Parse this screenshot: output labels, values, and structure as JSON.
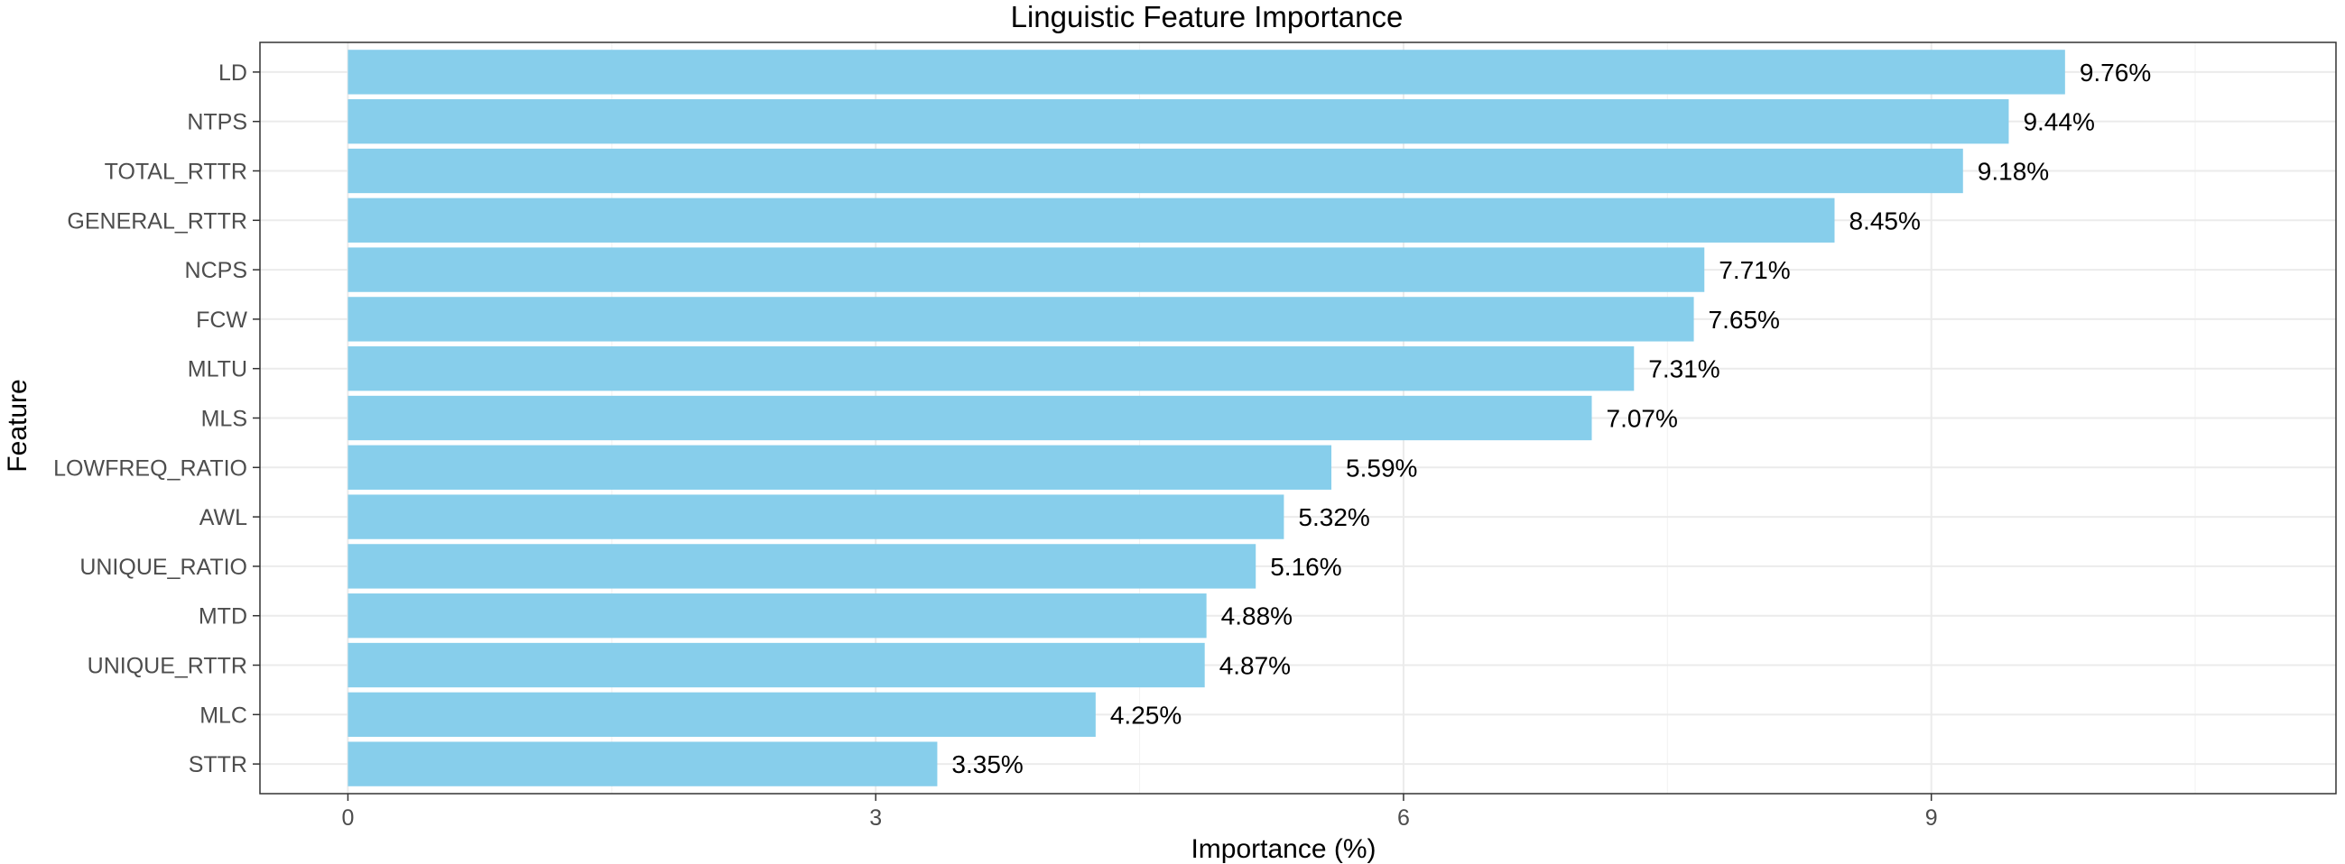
{
  "chart_data": {
    "type": "bar",
    "orientation": "horizontal",
    "title": "Linguistic Feature Importance",
    "xlabel": "Importance (%)",
    "ylabel": "Feature",
    "xlim": [
      -0.5,
      11.3
    ],
    "xticks": [
      0,
      3,
      6,
      9
    ],
    "grid": true,
    "bar_color": "#87CEEB",
    "categories": [
      "LD",
      "NTPS",
      "TOTAL_RTTR",
      "GENERAL_RTTR",
      "NCPS",
      "FCW",
      "MLTU",
      "MLS",
      "LOWFREQ_RATIO",
      "AWL",
      "UNIQUE_RATIO",
      "MTD",
      "UNIQUE_RTTR",
      "MLC",
      "STTR"
    ],
    "values": [
      9.76,
      9.44,
      9.18,
      8.45,
      7.71,
      7.65,
      7.31,
      7.07,
      5.59,
      5.32,
      5.16,
      4.88,
      4.87,
      4.25,
      3.35
    ],
    "value_labels": [
      "9.76%",
      "9.44%",
      "9.18%",
      "8.45%",
      "7.71%",
      "7.65%",
      "7.31%",
      "7.07%",
      "5.59%",
      "5.32%",
      "5.16%",
      "4.88%",
      "4.87%",
      "4.25%",
      "3.35%"
    ]
  }
}
